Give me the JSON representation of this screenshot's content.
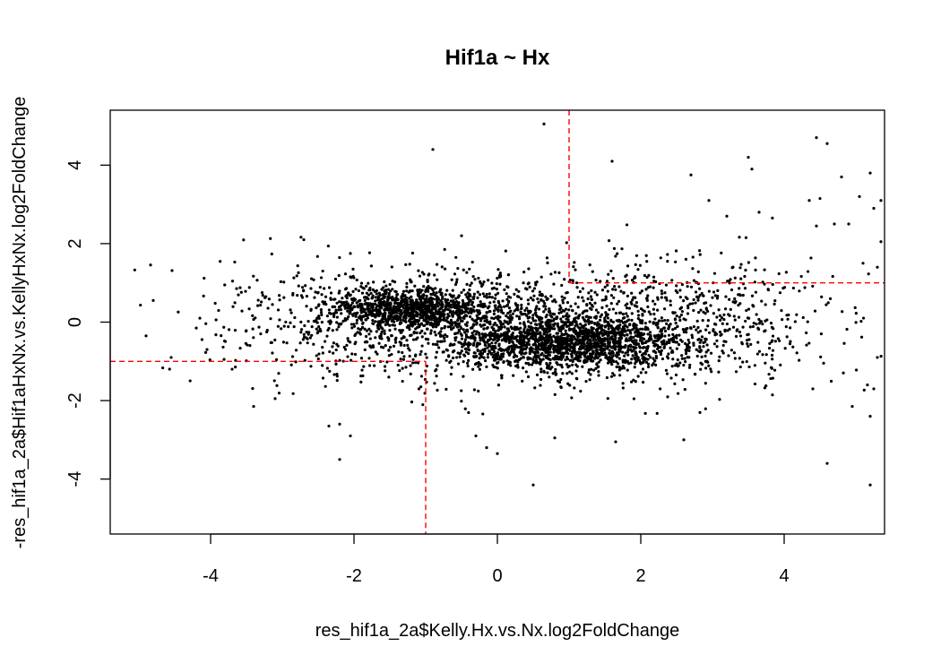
{
  "chart_data": {
    "type": "scatter",
    "title": "Hif1a ~ Hx",
    "xlabel": "res_hif1a_2a$Kelly.Hx.vs.Nx.log2FoldChange",
    "ylabel": "-res_hif1a_2a$Hif1aHxNx.vs.KellyHxNx.log2FoldChange",
    "xlim": [
      -5.4,
      5.4
    ],
    "ylim": [
      -5.4,
      5.4
    ],
    "x_ticks": [
      -4,
      -2,
      0,
      2,
      4
    ],
    "y_ticks": [
      -4,
      -2,
      0,
      2,
      4
    ],
    "grid": false,
    "point_color": "#000000",
    "reference_line_color": "#ff0000",
    "reference_lines": [
      {
        "orientation": "vertical",
        "x": 1,
        "y_from": 1,
        "y_to": 5.4
      },
      {
        "orientation": "horizontal",
        "y": 1,
        "x_from": 1,
        "x_to": 5.4
      },
      {
        "orientation": "vertical",
        "x": -1,
        "y_from": -5.4,
        "y_to": -1
      },
      {
        "orientation": "horizontal",
        "y": -1,
        "x_from": -5.4,
        "x_to": -1
      }
    ],
    "clusters": [
      {
        "cx": -1.2,
        "cy": 0.35,
        "sx": 0.55,
        "sy": 0.25,
        "n": 900
      },
      {
        "cx": 1.1,
        "cy": -0.5,
        "sx": 0.8,
        "sy": 0.35,
        "n": 1500
      },
      {
        "cx": 0.1,
        "cy": -0.1,
        "sx": 1.6,
        "sy": 0.75,
        "n": 1300
      },
      {
        "cx": 2.9,
        "cy": 0.1,
        "sx": 1.1,
        "sy": 0.9,
        "n": 350
      },
      {
        "cx": -2.6,
        "cy": 0.0,
        "sx": 0.9,
        "sy": 0.8,
        "n": 180
      }
    ],
    "points": [
      {
        "x": 0.65,
        "y": 5.05
      },
      {
        "x": -0.9,
        "y": 4.4
      },
      {
        "x": 1.6,
        "y": 4.1
      },
      {
        "x": 4.45,
        "y": 4.7
      },
      {
        "x": 4.6,
        "y": 4.55
      },
      {
        "x": 3.5,
        "y": 4.2
      },
      {
        "x": 3.55,
        "y": 3.9
      },
      {
        "x": 5.2,
        "y": 3.8
      },
      {
        "x": 4.8,
        "y": 3.7
      },
      {
        "x": 2.7,
        "y": 3.75
      },
      {
        "x": 5.05,
        "y": 3.2
      },
      {
        "x": 4.35,
        "y": 3.1
      },
      {
        "x": 5.35,
        "y": 3.1
      },
      {
        "x": 5.25,
        "y": 2.9
      },
      {
        "x": 4.5,
        "y": 3.15
      },
      {
        "x": -2.7,
        "y": 2.1
      },
      {
        "x": -2.05,
        "y": 1.75
      },
      {
        "x": -0.5,
        "y": 2.2
      },
      {
        "x": -4.8,
        "y": 0.55
      },
      {
        "x": -4.9,
        "y": -0.35
      },
      {
        "x": -4.15,
        "y": 0.1
      },
      {
        "x": -4.2,
        "y": -0.15
      },
      {
        "x": -4.05,
        "y": -0.7
      },
      {
        "x": -4.55,
        "y": -0.9
      },
      {
        "x": -3.7,
        "y": -1.2
      },
      {
        "x": -3.4,
        "y": -2.15
      },
      {
        "x": -3.1,
        "y": -1.95
      },
      {
        "x": -2.2,
        "y": -2.6
      },
      {
        "x": -2.05,
        "y": -2.9
      },
      {
        "x": -2.2,
        "y": -3.5
      },
      {
        "x": -2.35,
        "y": -2.65
      },
      {
        "x": -0.3,
        "y": -2.9
      },
      {
        "x": -0.15,
        "y": -3.2
      },
      {
        "x": 0.0,
        "y": -3.35
      },
      {
        "x": 0.5,
        "y": -4.15
      },
      {
        "x": 0.8,
        "y": -2.95
      },
      {
        "x": 1.65,
        "y": -3.05
      },
      {
        "x": 2.6,
        "y": -3.0
      },
      {
        "x": 4.6,
        "y": -3.6
      },
      {
        "x": 5.2,
        "y": -4.15
      },
      {
        "x": 5.2,
        "y": -2.4
      },
      {
        "x": 5.25,
        "y": -1.7
      },
      {
        "x": 5.3,
        "y": -0.9
      },
      {
        "x": 4.95,
        "y": -2.15
      },
      {
        "x": 4.4,
        "y": -1.7
      },
      {
        "x": 5.1,
        "y": 1.5
      },
      {
        "x": 5.3,
        "y": 1.4
      },
      {
        "x": 5.35,
        "y": 2.05
      },
      {
        "x": 4.7,
        "y": 2.5
      },
      {
        "x": 4.9,
        "y": 2.5
      },
      {
        "x": 4.45,
        "y": 2.45
      },
      {
        "x": 3.65,
        "y": 2.8
      },
      {
        "x": 3.2,
        "y": 2.7
      },
      {
        "x": 2.95,
        "y": 3.1
      }
    ]
  }
}
